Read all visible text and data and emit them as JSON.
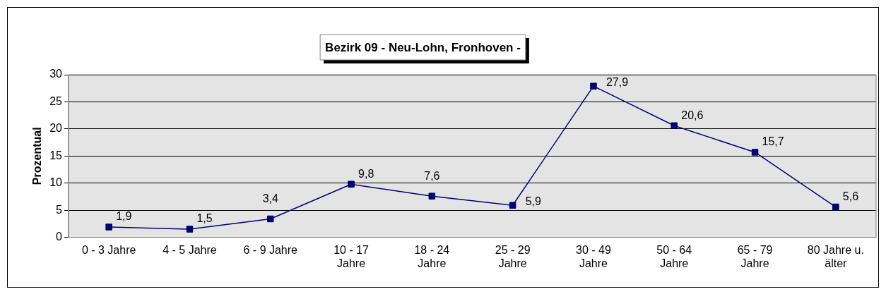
{
  "chart_data": {
    "type": "line",
    "title": "Bezirk 09 - Neu-Lohn, Fronhoven -",
    "ylabel": "Prozentual",
    "categories": [
      "0 - 3 Jahre",
      "4 - 5 Jahre",
      "6 - 9 Jahre",
      "10 - 17\nJahre",
      "18 - 24\nJahre",
      "25 - 29\nJahre",
      "30 - 49\nJahre",
      "50 - 64\nJahre",
      "65 - 79\nJahre",
      "80 Jahre u.\nälter"
    ],
    "series": [
      {
        "color": "#000080",
        "values": [
          1.9,
          1.5,
          3.4,
          9.8,
          7.6,
          5.9,
          27.9,
          20.6,
          15.7,
          5.6
        ],
        "value_labels": [
          "1,9",
          "1,5",
          "3,4",
          "9,8",
          "7,6",
          "5,9",
          "27,9",
          "20,6",
          "15,7",
          "5,6"
        ]
      }
    ],
    "ylim": [
      0,
      30
    ],
    "yticks": [
      0,
      5,
      10,
      15,
      20,
      25,
      30
    ],
    "grid": "y",
    "legend": false,
    "marker": "square",
    "line_style": "solid"
  }
}
